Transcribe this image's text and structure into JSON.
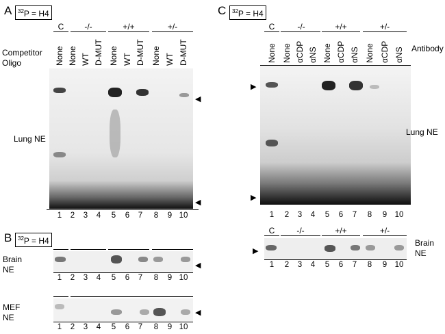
{
  "panel_a": {
    "letter": "A",
    "probe_base": "P = H4",
    "probe_sup": "32",
    "competitor_label_1": "Competitor",
    "competitor_label_2": "Oligo",
    "groups": [
      "C",
      "-/-",
      "+/+",
      "+/-"
    ],
    "lane_headers": [
      "None",
      "None",
      "WT",
      "D-MUT",
      "None",
      "WT",
      "D-MUT",
      "None",
      "WT",
      "D-MUT"
    ],
    "side_label": "Lung NE",
    "lane_numbers": [
      "1",
      "2",
      "3",
      "4",
      "5",
      "6",
      "7",
      "8",
      "9",
      "10"
    ]
  },
  "panel_b": {
    "letter": "B",
    "probe_base": "P = H4",
    "probe_sup": "32",
    "brain_label_1": "Brain",
    "brain_label_2": "NE",
    "mef_label_1": "MEF",
    "mef_label_2": "NE",
    "lane_numbers": [
      "1",
      "2",
      "3",
      "4",
      "5",
      "6",
      "7",
      "8",
      "9",
      "10"
    ]
  },
  "panel_c": {
    "letter": "C",
    "probe_base": "P = H4",
    "probe_sup": "32",
    "groups": [
      "C",
      "-/-",
      "+/+",
      "+/-"
    ],
    "lane_headers": [
      "None",
      "None",
      "αCDP",
      "αNS",
      "None",
      "αCDP",
      "αNS",
      "None",
      "αCDP",
      "αNS"
    ],
    "antibody_label": "Antibody",
    "side_label": "Lung NE",
    "brain_label_1": "Brain",
    "brain_label_2": "NE",
    "lane_numbers": [
      "1",
      "2",
      "3",
      "4",
      "5",
      "6",
      "7",
      "8",
      "9",
      "10"
    ]
  }
}
